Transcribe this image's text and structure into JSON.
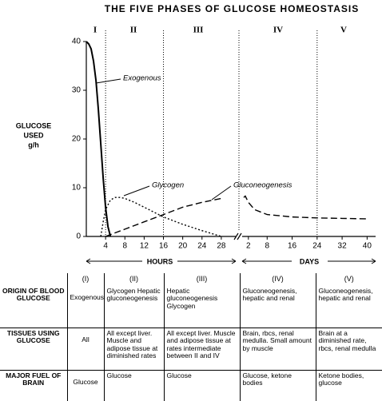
{
  "chart_data": [
    {
      "type": "line",
      "title": "THE FIVE PHASES OF GLUCOSE HOMEOSTASIS",
      "ylabel": [
        "GLUCOSE",
        "USED",
        "g/h"
      ],
      "phases": [
        "I",
        "II",
        "III",
        "IV",
        "V"
      ],
      "xlabel": "HOURS",
      "xlim": [
        0,
        31
      ],
      "xticks": [
        4,
        8,
        12,
        16,
        20,
        24,
        28
      ],
      "ylim": [
        0,
        40
      ],
      "yticks": [
        0,
        10,
        20,
        30,
        40
      ],
      "vlines": [
        4,
        16
      ],
      "series": [
        {
          "name": "Exogenous",
          "color": "#000000",
          "style": "solid",
          "x": [
            0,
            0.5,
            1,
            1.5,
            2,
            2.5,
            3,
            3.5,
            4,
            4.5,
            5
          ],
          "values": [
            40,
            39.5,
            38.5,
            36,
            32,
            26,
            19,
            12,
            6,
            2,
            0
          ]
        },
        {
          "name": "Glycogen",
          "color": "#000000",
          "style": "dotted",
          "x": [
            3,
            3.5,
            4,
            5,
            6,
            7,
            8,
            10,
            12,
            16,
            20,
            24,
            28
          ],
          "values": [
            0,
            3,
            5.5,
            7.5,
            8,
            8,
            7.8,
            7,
            6,
            4,
            2.5,
            1.2,
            0
          ]
        },
        {
          "name": "Gluconeogenesis",
          "color": "#000000",
          "style": "dashed",
          "x": [
            4,
            8,
            12,
            16,
            20,
            24,
            28
          ],
          "values": [
            0,
            1.5,
            3,
            4.5,
            6,
            7,
            7.8
          ]
        }
      ]
    },
    {
      "type": "line",
      "xlabel": "DAYS",
      "xlim": [
        0,
        44
      ],
      "xticks": [
        2,
        8,
        16,
        24,
        32,
        40
      ],
      "ylim": [
        0,
        40
      ],
      "vlines": [
        24
      ],
      "series": [
        {
          "color": "#000000",
          "style": "dashed",
          "x": [
            0.5,
            1,
            2,
            4,
            8,
            16,
            24,
            32,
            40
          ],
          "values": [
            8,
            8.3,
            7,
            5.5,
            4.5,
            4,
            3.8,
            3.7,
            3.6
          ]
        }
      ]
    }
  ],
  "table": {
    "headers": [
      "(I)",
      "(II)",
      "(III)",
      "(IV)",
      "(V)"
    ],
    "rows": [
      {
        "label": "ORIGIN OF BLOOD GLUCOSE",
        "cells": [
          "Exogenous",
          "Glycogen Hepatic gluconeogenesis",
          "Hepatic gluconeogenesis Glycogen",
          "Gluconeogenesis, hepatic and renal",
          "Gluconeogenesis, hepatic and renal"
        ]
      },
      {
        "label": "TISSUES USING GLUCOSE",
        "cells": [
          "All",
          "All except liver. Muscle and adipose tissue at diminished rates",
          "All except liver. Muscle and adipose tissue at rates intermediate between II and IV",
          "Brain, rbcs, renal medulla. Small amount by muscle",
          "Brain at a diminished rate, rbcs, renal medulla"
        ]
      },
      {
        "label": "MAJOR FUEL OF BRAIN",
        "cells": [
          "Glucose",
          "Glucose",
          "Glucose",
          "Glucose, ketone bodies",
          "Ketone bodies, glucose"
        ]
      }
    ]
  }
}
